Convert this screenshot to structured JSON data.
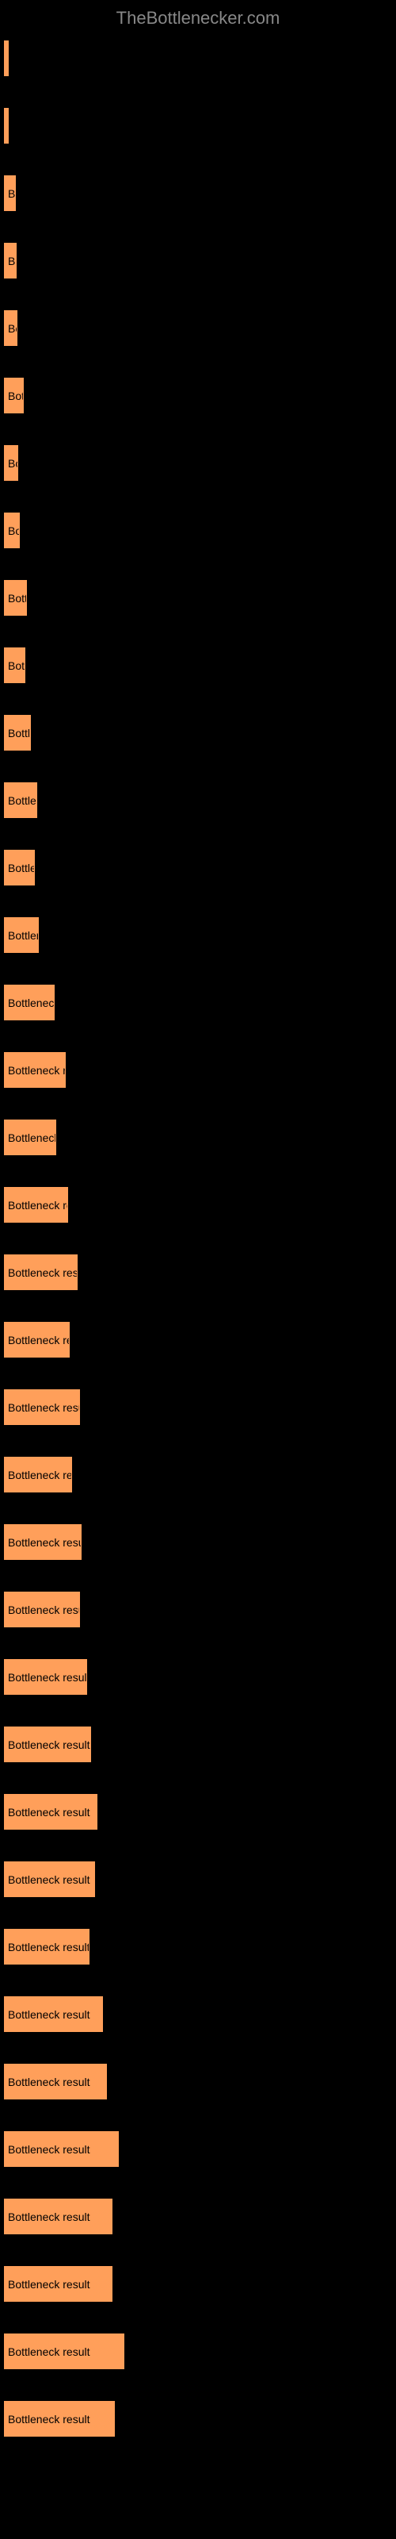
{
  "watermark": "TheBottlenecker.com",
  "chart": {
    "type": "bar",
    "label_text": "Bottleneck result",
    "bar_color": "#ff9f5a",
    "text_color": "#000000",
    "background_color": "#000000",
    "max_width": 490,
    "bars": [
      {
        "width_pct": 1.0
      },
      {
        "width_pct": 1.3
      },
      {
        "width_pct": 3.0
      },
      {
        "width_pct": 3.2
      },
      {
        "width_pct": 3.4
      },
      {
        "width_pct": 5.0
      },
      {
        "width_pct": 3.6
      },
      {
        "width_pct": 4.0
      },
      {
        "width_pct": 6.0
      },
      {
        "width_pct": 5.5
      },
      {
        "width_pct": 7.0
      },
      {
        "width_pct": 8.5
      },
      {
        "width_pct": 8.0
      },
      {
        "width_pct": 9.0
      },
      {
        "width_pct": 13.0
      },
      {
        "width_pct": 16.0
      },
      {
        "width_pct": 13.5
      },
      {
        "width_pct": 16.5
      },
      {
        "width_pct": 19.0
      },
      {
        "width_pct": 17.0
      },
      {
        "width_pct": 19.5
      },
      {
        "width_pct": 17.5
      },
      {
        "width_pct": 20.0
      },
      {
        "width_pct": 19.5
      },
      {
        "width_pct": 21.5
      },
      {
        "width_pct": 22.5
      },
      {
        "width_pct": 24.0
      },
      {
        "width_pct": 23.5
      },
      {
        "width_pct": 22.0
      },
      {
        "width_pct": 25.5
      },
      {
        "width_pct": 26.5
      },
      {
        "width_pct": 29.5
      },
      {
        "width_pct": 28.0
      },
      {
        "width_pct": 28.0
      },
      {
        "width_pct": 31.0
      },
      {
        "width_pct": 28.5
      }
    ]
  }
}
